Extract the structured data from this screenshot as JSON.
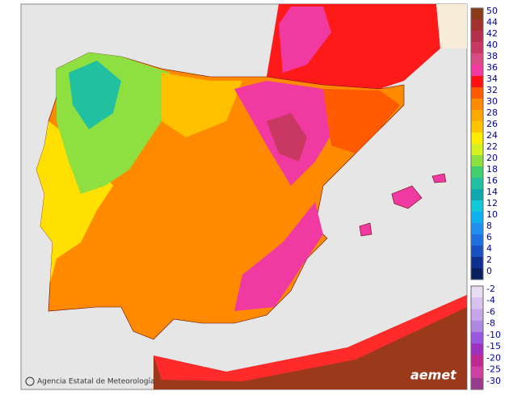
{
  "legend": {
    "upper": [
      {
        "label": 50,
        "color": "#8b3a1a"
      },
      {
        "label": 44,
        "color": "#a2302e"
      },
      {
        "label": 42,
        "color": "#b5304a"
      },
      {
        "label": 40,
        "color": "#c83862"
      },
      {
        "label": 38,
        "color": "#da4a84"
      },
      {
        "label": 36,
        "color": "#f03aa2"
      },
      {
        "label": 34,
        "color": "#ff1010"
      },
      {
        "label": 32,
        "color": "#ff5a00"
      },
      {
        "label": 30,
        "color": "#ff8a00"
      },
      {
        "label": 28,
        "color": "#ffa800"
      },
      {
        "label": 26,
        "color": "#ffc600"
      },
      {
        "label": 24,
        "color": "#ffec00"
      },
      {
        "label": 22,
        "color": "#d6f020"
      },
      {
        "label": 20,
        "color": "#8ee040"
      },
      {
        "label": 18,
        "color": "#40d070"
      },
      {
        "label": 16,
        "color": "#20c0a0"
      },
      {
        "label": 14,
        "color": "#10a8b0"
      },
      {
        "label": 12,
        "color": "#10c8d8"
      },
      {
        "label": 10,
        "color": "#10b0f0"
      },
      {
        "label": 8,
        "color": "#2090f0"
      },
      {
        "label": 6,
        "color": "#2070e0"
      },
      {
        "label": 4,
        "color": "#1850c0"
      },
      {
        "label": 2,
        "color": "#103090"
      },
      {
        "label": 0,
        "color": "#082060"
      }
    ],
    "lower": [
      {
        "label": -2,
        "color": "#eadcf2"
      },
      {
        "label": -4,
        "color": "#d8c2ee"
      },
      {
        "label": -6,
        "color": "#c6a8ea"
      },
      {
        "label": -8,
        "color": "#ae88e2"
      },
      {
        "label": -10,
        "color": "#9858e0"
      },
      {
        "label": -15,
        "color": "#a030c0"
      },
      {
        "label": -20,
        "color": "#c02890"
      },
      {
        "label": -25,
        "color": "#d040a0"
      },
      {
        "label": -30,
        "color": "#9a3a8a"
      }
    ]
  },
  "credit": "Agencia Estatal de Meteorología",
  "logo": "aemet"
}
